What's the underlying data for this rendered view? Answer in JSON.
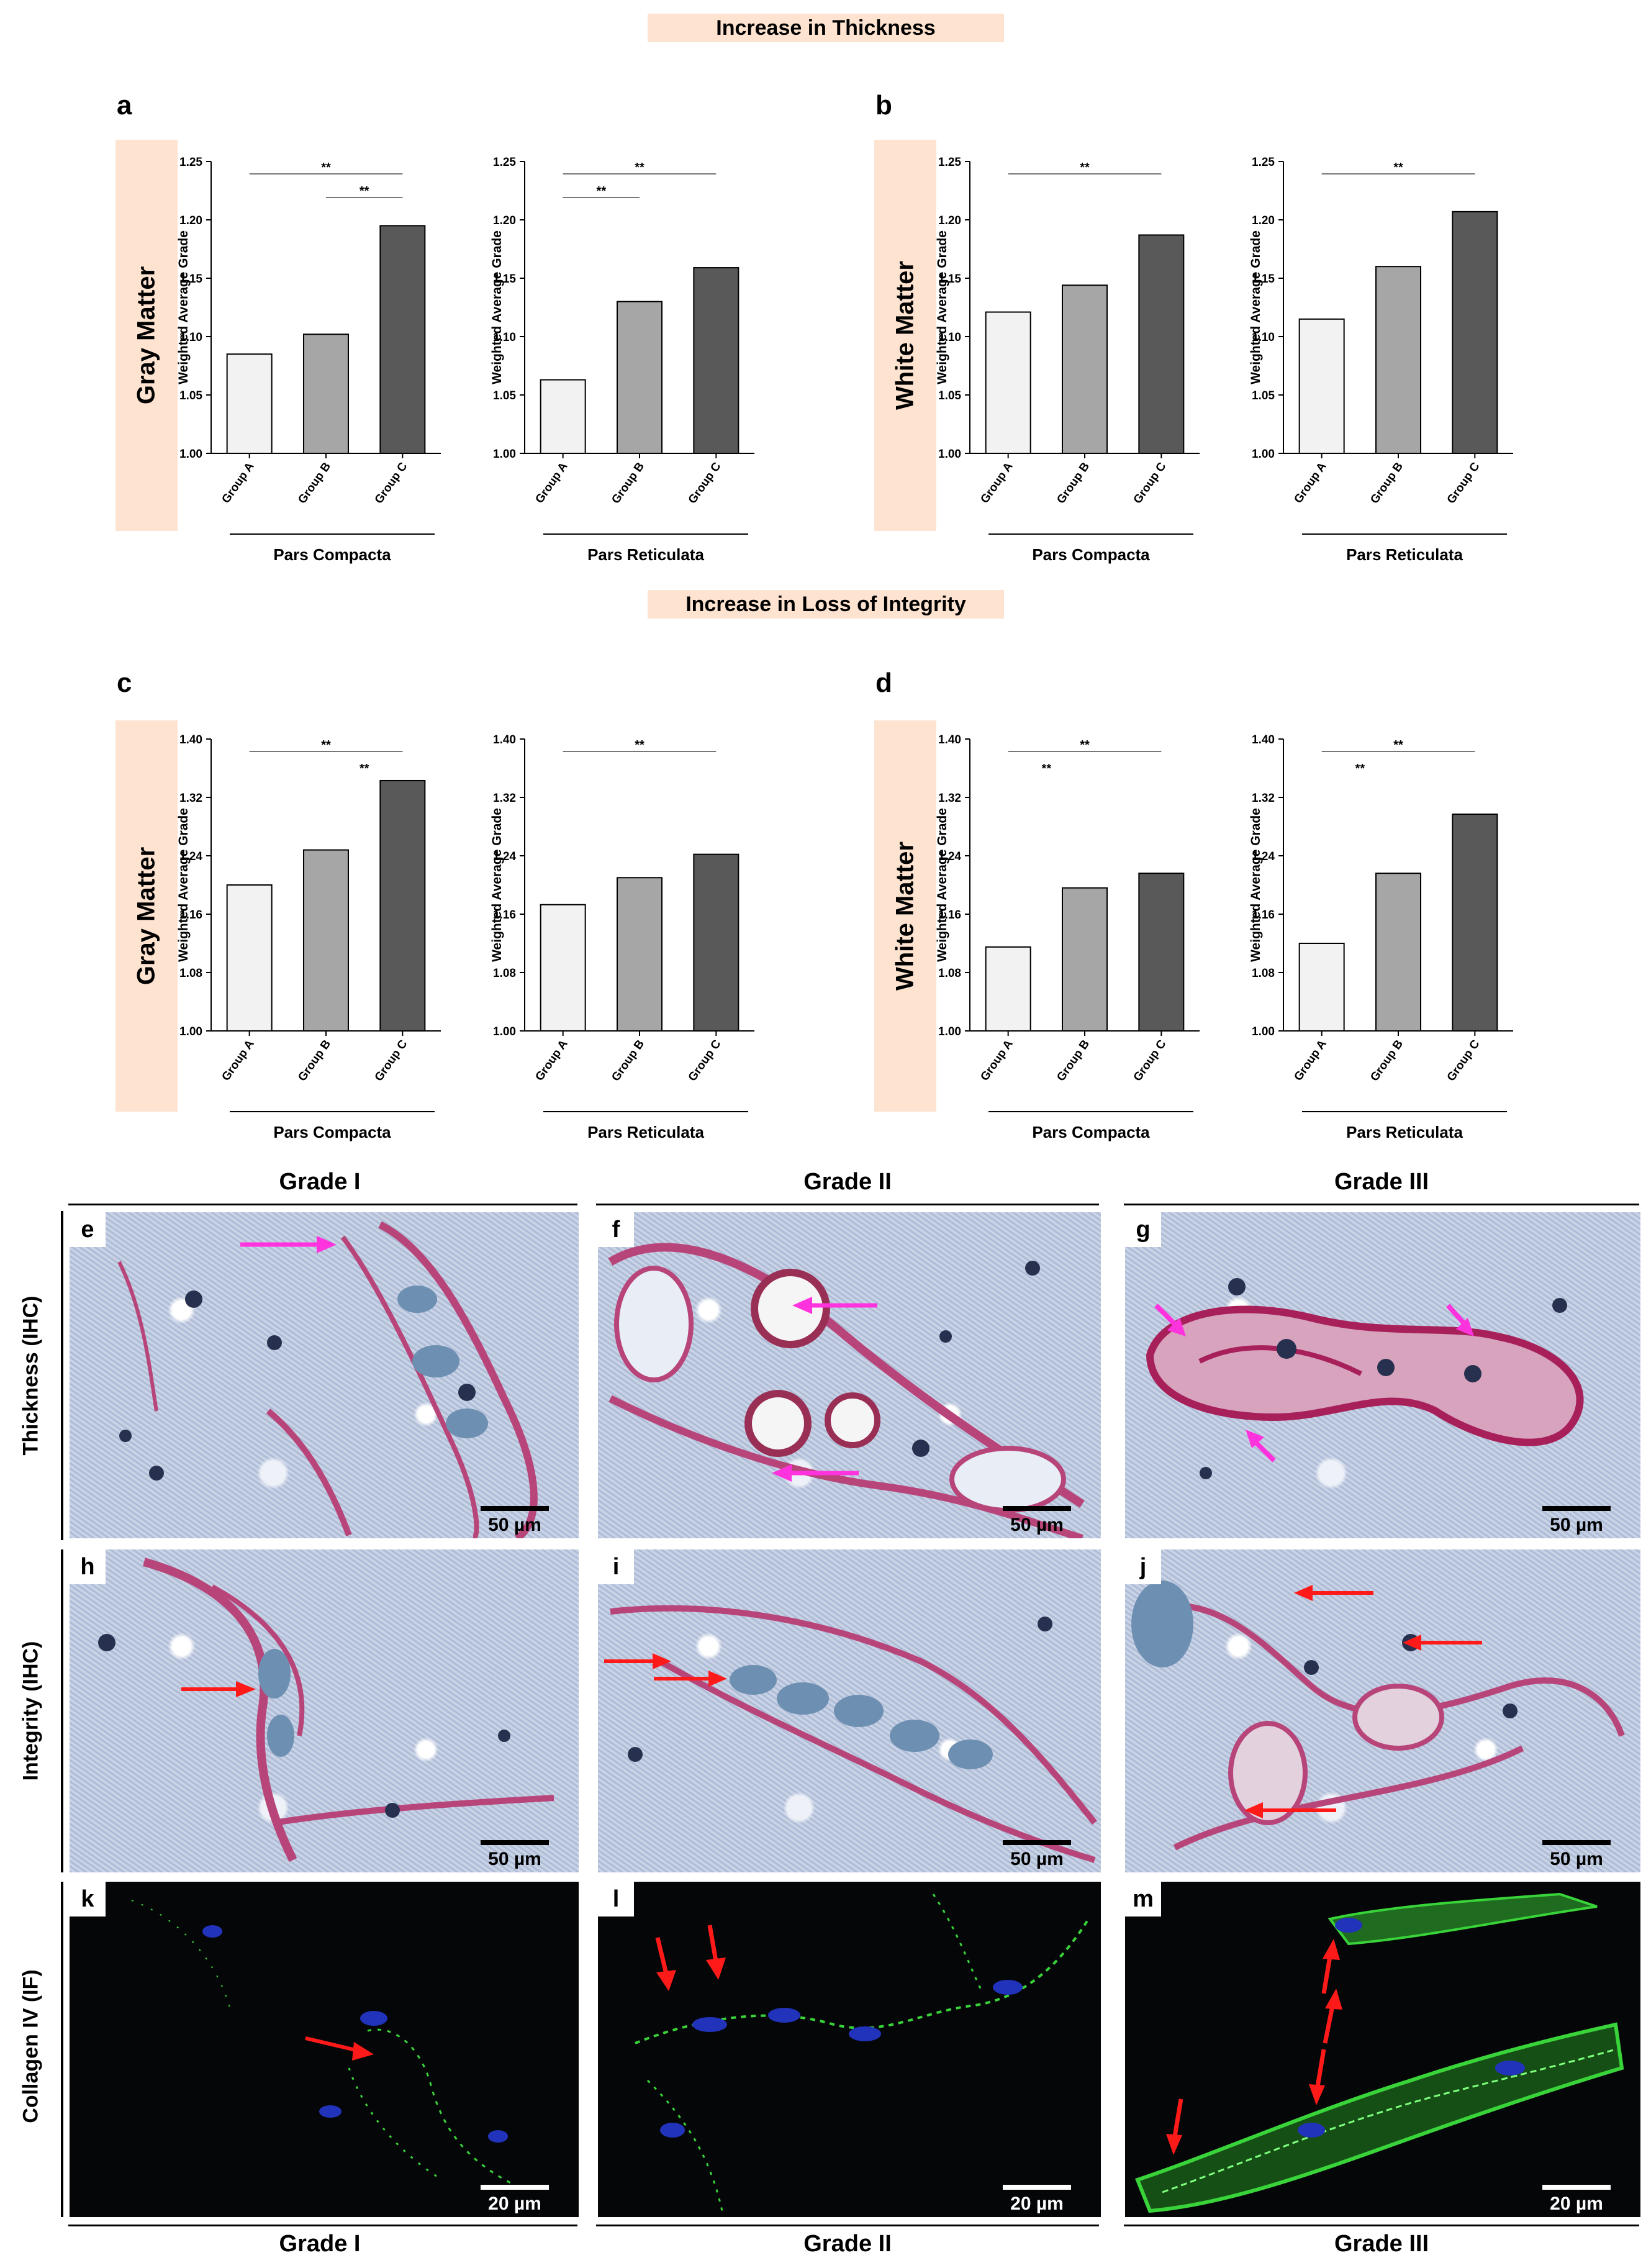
{
  "section_titles": {
    "thickness": "Increase in Thickness",
    "integrity": "Increase in Loss of Integrity"
  },
  "chart_panels": [
    {
      "letter": "a",
      "row_label": "Gray Matter"
    },
    {
      "letter": "b",
      "row_label": "White Matter"
    },
    {
      "letter": "c",
      "row_label": "Gray Matter"
    },
    {
      "letter": "d",
      "row_label": "White Matter"
    }
  ],
  "colors": {
    "band": "#fde3d0",
    "group_a": "#f2f2f2",
    "group_b": "#a6a6a6",
    "group_c": "#595959",
    "arrow_magenta": "#ff33dd",
    "arrow_red": "#ff1a1a",
    "if_green": "#39d439",
    "if_blue": "#2233bb"
  },
  "chart_data": [
    {
      "panel": "a",
      "type": "bar",
      "categories": [
        "Group A",
        "Group B",
        "Group C"
      ],
      "values": [
        1.085,
        1.102,
        1.195
      ],
      "ylabel": "Weighted Average Grade",
      "xlabel": "Pars Compacta",
      "ylim": [
        1.0,
        1.25
      ],
      "yticks": [
        "1.00",
        "1.05",
        "1.10",
        "1.15",
        "1.20",
        "1.25"
      ],
      "significance": [
        {
          "from": 0,
          "to": 2,
          "label": "**"
        },
        {
          "from": 1,
          "to": 2,
          "label": "**"
        }
      ]
    },
    {
      "panel": "a",
      "type": "bar",
      "categories": [
        "Group A",
        "Group B",
        "Group C"
      ],
      "values": [
        1.063,
        1.13,
        1.159
      ],
      "ylabel": "Weighted Average Grade",
      "xlabel": "Pars Reticulata",
      "ylim": [
        1.0,
        1.25
      ],
      "yticks": [
        "1.00",
        "1.05",
        "1.10",
        "1.15",
        "1.20",
        "1.25"
      ],
      "significance": [
        {
          "from": 0,
          "to": 2,
          "label": "**"
        },
        {
          "from": 0,
          "to": 1,
          "label": "**"
        }
      ]
    },
    {
      "panel": "b",
      "type": "bar",
      "categories": [
        "Group A",
        "Group B",
        "Group C"
      ],
      "values": [
        1.121,
        1.144,
        1.187
      ],
      "ylabel": "Weighted Average Grade",
      "xlabel": "Pars Compacta",
      "ylim": [
        1.0,
        1.25
      ],
      "yticks": [
        "1.00",
        "1.05",
        "1.10",
        "1.15",
        "1.20",
        "1.25"
      ],
      "significance": [
        {
          "from": 0,
          "to": 2,
          "label": "**"
        }
      ]
    },
    {
      "panel": "b",
      "type": "bar",
      "categories": [
        "Group A",
        "Group B",
        "Group C"
      ],
      "values": [
        1.115,
        1.16,
        1.207
      ],
      "ylabel": "Weighted Average Grade",
      "xlabel": "Pars Reticulata",
      "ylim": [
        1.0,
        1.25
      ],
      "yticks": [
        "1.00",
        "1.05",
        "1.10",
        "1.15",
        "1.20",
        "1.25"
      ],
      "significance": [
        {
          "from": 0,
          "to": 2,
          "label": "**"
        }
      ]
    },
    {
      "panel": "c",
      "type": "bar",
      "categories": [
        "Group A",
        "Group B",
        "Group C"
      ],
      "values": [
        1.2,
        1.248,
        1.343
      ],
      "ylabel": "Weighted Average Grade",
      "xlabel": "Pars Compacta",
      "ylim": [
        1.0,
        1.4
      ],
      "yticks": [
        "1.00",
        "1.08",
        "1.16",
        "1.24",
        "1.32",
        "1.40"
      ],
      "significance": [
        {
          "from": 0,
          "to": 2,
          "label": "**"
        },
        {
          "from": 1,
          "to": 2,
          "label": "**",
          "bare": true
        }
      ]
    },
    {
      "panel": "c",
      "type": "bar",
      "categories": [
        "Group A",
        "Group B",
        "Group C"
      ],
      "values": [
        1.173,
        1.21,
        1.242
      ],
      "ylabel": "Weighted Average Grade",
      "xlabel": "Pars Reticulata",
      "ylim": [
        1.0,
        1.4
      ],
      "yticks": [
        "1.00",
        "1.08",
        "1.16",
        "1.24",
        "1.32",
        "1.40"
      ],
      "significance": [
        {
          "from": 0,
          "to": 2,
          "label": "**"
        }
      ]
    },
    {
      "panel": "d",
      "type": "bar",
      "categories": [
        "Group A",
        "Group B",
        "Group C"
      ],
      "values": [
        1.115,
        1.196,
        1.216
      ],
      "ylabel": "Weighted Average Grade",
      "xlabel": "Pars Compacta",
      "ylim": [
        1.0,
        1.4
      ],
      "yticks": [
        "1.00",
        "1.08",
        "1.16",
        "1.24",
        "1.32",
        "1.40"
      ],
      "significance": [
        {
          "from": 0,
          "to": 2,
          "label": "**"
        },
        {
          "from": 0,
          "to": 1,
          "label": "**",
          "bare": true
        }
      ]
    },
    {
      "panel": "d",
      "type": "bar",
      "categories": [
        "Group A",
        "Group B",
        "Group C"
      ],
      "values": [
        1.12,
        1.216,
        1.297
      ],
      "ylabel": "Weighted Average Grade",
      "xlabel": "Pars Reticulata",
      "ylim": [
        1.0,
        1.4
      ],
      "yticks": [
        "1.00",
        "1.08",
        "1.16",
        "1.24",
        "1.32",
        "1.40"
      ],
      "significance": [
        {
          "from": 0,
          "to": 2,
          "label": "**"
        },
        {
          "from": 0,
          "to": 1,
          "label": "**",
          "bare": true
        }
      ]
    }
  ],
  "micrographs": {
    "grade_headers": [
      "Grade I",
      "Grade II",
      "Grade III"
    ],
    "row_labels": [
      "Thickness (IHC)",
      "Integrity (IHC)",
      "Collagen IV (IF)"
    ],
    "panels": [
      {
        "letter": "e",
        "scale": "50 µm"
      },
      {
        "letter": "f",
        "scale": "50 µm"
      },
      {
        "letter": "g",
        "scale": "50 µm"
      },
      {
        "letter": "h",
        "scale": "50 µm"
      },
      {
        "letter": "i",
        "scale": "50 µm"
      },
      {
        "letter": "j",
        "scale": "50 µm"
      },
      {
        "letter": "k",
        "scale": "20 µm"
      },
      {
        "letter": "l",
        "scale": "20 µm"
      },
      {
        "letter": "m",
        "scale": "20 µm"
      }
    ]
  }
}
